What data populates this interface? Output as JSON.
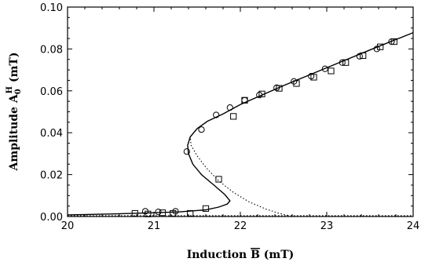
{
  "chart_data": {
    "type": "scatter",
    "title": "",
    "xlabel": "Induction B̄ (mT)",
    "ylabel": "Amplitude A₀ᴴ (mT)",
    "xlim": [
      20,
      24
    ],
    "ylim": [
      0,
      0.1
    ],
    "x_ticks": [
      20,
      21,
      22,
      23,
      24
    ],
    "y_ticks": [
      0.0,
      0.02,
      0.04,
      0.06,
      0.08,
      0.1
    ],
    "x_tick_labels": [
      "20",
      "21",
      "22",
      "23",
      "24"
    ],
    "y_tick_labels": [
      "0.00",
      "0.02",
      "0.04",
      "0.06",
      "0.08",
      "0.10"
    ],
    "grid": false,
    "legend": "none",
    "series": [
      {
        "marker": "circle",
        "values": [
          [
            20.9,
            0.0025
          ],
          [
            21.05,
            0.0022
          ],
          [
            21.25,
            0.0025
          ],
          [
            21.38,
            0.031
          ],
          [
            21.55,
            0.0415
          ],
          [
            21.72,
            0.0485
          ],
          [
            21.88,
            0.052
          ],
          [
            22.05,
            0.0555
          ],
          [
            22.22,
            0.058
          ],
          [
            22.42,
            0.0615
          ],
          [
            22.62,
            0.0645
          ],
          [
            22.82,
            0.067
          ],
          [
            22.98,
            0.0705
          ],
          [
            23.18,
            0.0735
          ],
          [
            23.38,
            0.0765
          ],
          [
            23.58,
            0.08
          ],
          [
            23.75,
            0.0835
          ]
        ]
      },
      {
        "marker": "square",
        "values": [
          [
            20.78,
            0.0015
          ],
          [
            20.93,
            0.0012
          ],
          [
            21.1,
            0.0018
          ],
          [
            21.22,
            0.0015
          ],
          [
            21.42,
            0.0015
          ],
          [
            21.6,
            0.0038
          ],
          [
            21.75,
            0.0178
          ],
          [
            21.92,
            0.0478
          ],
          [
            22.05,
            0.0555
          ],
          [
            22.25,
            0.0585
          ],
          [
            22.45,
            0.0612
          ],
          [
            22.65,
            0.0635
          ],
          [
            22.85,
            0.0665
          ],
          [
            23.05,
            0.0695
          ],
          [
            23.22,
            0.0735
          ],
          [
            23.42,
            0.0768
          ],
          [
            23.62,
            0.081
          ],
          [
            23.78,
            0.0835
          ]
        ]
      }
    ],
    "curves": [
      {
        "style": "solid",
        "values": [
          [
            20.0,
            0.0008
          ],
          [
            20.5,
            0.0012
          ],
          [
            21.0,
            0.0018
          ],
          [
            21.3,
            0.0022
          ],
          [
            21.6,
            0.0032
          ],
          [
            21.75,
            0.0045
          ],
          [
            21.85,
            0.006
          ],
          [
            21.88,
            0.0075
          ],
          [
            21.82,
            0.0105
          ],
          [
            21.7,
            0.0148
          ],
          [
            21.55,
            0.02
          ],
          [
            21.45,
            0.025
          ],
          [
            21.4,
            0.03
          ],
          [
            21.39,
            0.034
          ],
          [
            21.42,
            0.038
          ],
          [
            21.5,
            0.042
          ],
          [
            21.62,
            0.0455
          ],
          [
            21.8,
            0.049
          ],
          [
            22.0,
            0.0535
          ],
          [
            22.5,
            0.0625
          ],
          [
            23.0,
            0.071
          ],
          [
            23.5,
            0.0795
          ],
          [
            24.0,
            0.0878
          ]
        ]
      },
      {
        "style": "dotted",
        "values": [
          [
            20.0,
            0.0004
          ],
          [
            21.0,
            0.0004
          ],
          [
            22.0,
            0.0004
          ],
          [
            23.0,
            0.0004
          ],
          [
            24.0,
            0.0004
          ]
        ]
      },
      {
        "style": "dotted",
        "values": [
          [
            22.55,
            0.0005
          ],
          [
            22.45,
            0.0015
          ],
          [
            22.3,
            0.0035
          ],
          [
            22.1,
            0.007
          ],
          [
            21.92,
            0.0115
          ],
          [
            21.75,
            0.017
          ],
          [
            21.6,
            0.0235
          ],
          [
            21.5,
            0.029
          ],
          [
            21.43,
            0.034
          ],
          [
            21.42,
            0.038
          ]
        ]
      }
    ]
  },
  "axis_text": {
    "xlabel_main": "Induction ",
    "xlabel_symbol": "B",
    "xlabel_unit": " (mT)",
    "ylabel_main": "Amplitude ",
    "ylabel_symbol": "A",
    "ylabel_sub": "0",
    "ylabel_sup": "H",
    "ylabel_unit": " (mT)"
  }
}
